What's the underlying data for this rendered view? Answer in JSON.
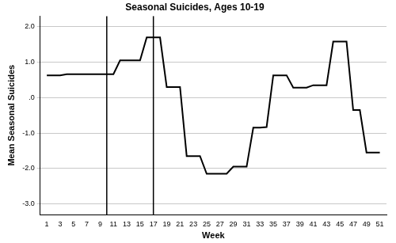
{
  "chart_data": {
    "type": "line",
    "title": "Seasonal Suicides, Ages 10-19",
    "x_label": "Week",
    "y_label": "Mean Seasonal Suicides",
    "x": [
      1,
      2,
      3,
      4,
      5,
      6,
      7,
      8,
      9,
      10,
      11,
      12,
      13,
      14,
      15,
      16,
      17,
      18,
      19,
      20,
      21,
      22,
      23,
      24,
      25,
      26,
      27,
      28,
      29,
      30,
      31,
      32,
      33,
      34,
      35,
      36,
      37,
      38,
      39,
      40,
      41,
      42,
      43,
      44,
      45,
      46,
      47,
      48,
      49,
      50,
      51
    ],
    "values": [
      0.63,
      0.63,
      0.63,
      0.66,
      0.66,
      0.66,
      0.66,
      0.66,
      0.66,
      0.66,
      0.66,
      1.05,
      1.05,
      1.05,
      1.05,
      1.7,
      1.7,
      1.7,
      0.3,
      0.3,
      0.3,
      -1.65,
      -1.65,
      -1.65,
      -2.15,
      -2.15,
      -2.15,
      -2.15,
      -1.95,
      -1.95,
      -1.95,
      -0.85,
      -0.85,
      -0.83,
      0.63,
      0.63,
      0.63,
      0.28,
      0.28,
      0.28,
      0.35,
      0.35,
      0.35,
      1.58,
      1.58,
      1.58,
      -0.35,
      -0.35,
      -1.55,
      -1.55,
      -1.55
    ],
    "color": "#000000",
    "xlim": [
      0,
      52
    ],
    "xticks": [
      1,
      3,
      5,
      7,
      9,
      11,
      13,
      15,
      17,
      19,
      21,
      23,
      25,
      27,
      29,
      31,
      33,
      35,
      37,
      39,
      41,
      43,
      45,
      47,
      49,
      51
    ],
    "ylim": [
      -3.3,
      2.3
    ],
    "yticks": [
      {
        "value": -3,
        "label": "-3.0"
      },
      {
        "value": -2,
        "label": "-2.0"
      },
      {
        "value": -1,
        "label": "-1.0"
      },
      {
        "value": 0,
        "label": ".0"
      },
      {
        "value": 1,
        "label": "1.0"
      },
      {
        "value": 2,
        "label": "2.0"
      }
    ],
    "vertical_lines": [
      10,
      17
    ],
    "grid": true
  }
}
